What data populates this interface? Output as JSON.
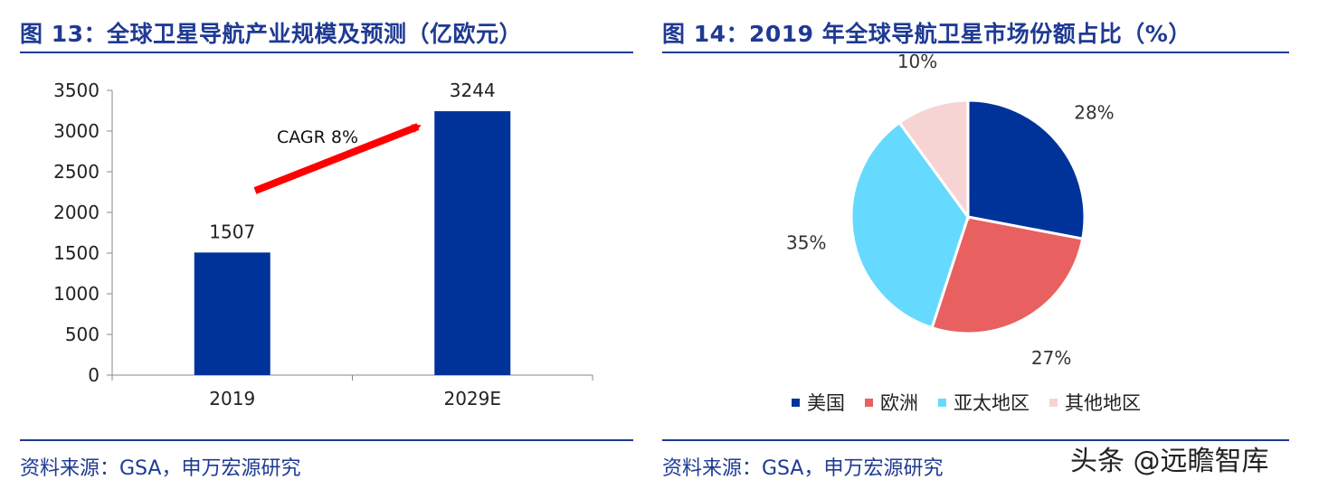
{
  "left": {
    "title": "图 13：全球卫星导航产业规模及预测（亿欧元）",
    "source": "资料来源：GSA，申万宏源研究",
    "annotation": "CAGR 8%"
  },
  "right": {
    "title": "图 14：2019 年全球导航卫星市场份额占比（%）",
    "source": "资料来源：GSA，申万宏源研究"
  },
  "watermark": "头条 @远瞻智库",
  "chart_data": [
    {
      "type": "bar",
      "categories": [
        "2019",
        "2029E"
      ],
      "values": [
        1507,
        3244
      ],
      "ylim": [
        0,
        3500
      ],
      "yticks": [
        0,
        500,
        1000,
        1500,
        2000,
        2500,
        3000,
        3500
      ],
      "data_labels": [
        "1507",
        "3244"
      ],
      "bar_color": "#003399",
      "grid": false
    },
    {
      "type": "pie",
      "categories": [
        "美国",
        "欧洲",
        "亚太地区",
        "其他地区"
      ],
      "values": [
        28,
        27,
        35,
        10
      ],
      "data_labels": [
        "28%",
        "27%",
        "35%",
        "10%"
      ],
      "colors": [
        "#003399",
        "#E86060",
        "#66D9FF",
        "#F7D4D4"
      ],
      "legend_position": "bottom"
    }
  ]
}
